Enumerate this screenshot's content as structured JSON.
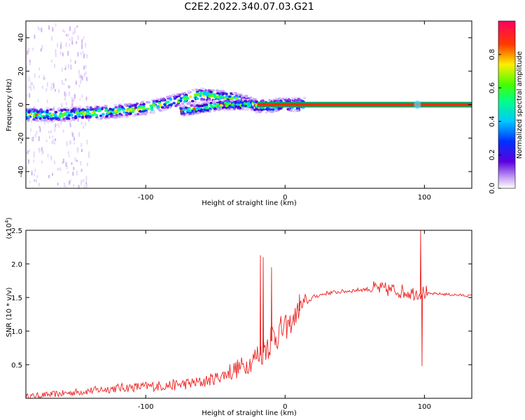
{
  "title": "C2E2.2022.340.07.03.G21",
  "chart_data": [
    {
      "type": "heatmap",
      "xlabel": "Height of straight line (km)",
      "ylabel": "Frequency (Hz)",
      "xlim": [
        -186,
        134
      ],
      "ylim": [
        -50,
        50
      ],
      "x_ticks": [
        -100,
        0,
        100
      ],
      "y_ticks": [
        -40,
        -20,
        0,
        20,
        40
      ],
      "colorbar": {
        "label": "Normalized spectral amplitude",
        "range": [
          0.0,
          1.0
        ],
        "ticks": [
          "0.0",
          "0.2",
          "0.4",
          "0.6",
          "0.8"
        ],
        "colormap": "rainbow (white → purple → blue → cyan → green → yellow → red → magenta)"
      },
      "main_trace": {
        "description_points_x": [
          -186,
          -160,
          -140,
          -120,
          -100,
          -80,
          -60,
          -40,
          -25,
          -20,
          0,
          10,
          50,
          95,
          134
        ],
        "description_points_y": [
          -6,
          -6,
          -5,
          -4,
          -2,
          2,
          6,
          4,
          1,
          -1,
          0,
          0,
          0,
          0,
          0
        ]
      },
      "secondary_trace": {
        "x": [
          -75,
          -60,
          -45,
          -30
        ],
        "y": [
          -4,
          -2,
          0,
          0
        ]
      },
      "grid": false
    },
    {
      "type": "line",
      "xlabel": "Height of straight line (km)",
      "ylabel": "SNR (10 * v/v)",
      "y_multiplier": "(x10",
      "y_multiplier_exp": "4",
      "xlim": [
        -186,
        134
      ],
      "ylim": [
        0,
        2.5
      ],
      "x_ticks": [
        -100,
        0,
        100
      ],
      "y_ticks": [
        0.5,
        1.0,
        1.5,
        2.0,
        2.5
      ],
      "y_tick_labels": [
        "0.5",
        "1.0",
        "1.5",
        "2.0",
        "2.5"
      ],
      "color": "#ee2222",
      "series": [
        {
          "base_x": [
            -186,
            -160,
            -140,
            -120,
            -100,
            -80,
            -60,
            -50,
            -40,
            -30,
            -25,
            -20,
            -15,
            -10,
            0,
            5,
            10,
            20,
            30,
            40,
            50,
            60,
            70,
            80,
            90,
            95,
            100,
            110,
            134
          ],
          "base_y": [
            0.02,
            0.06,
            0.1,
            0.14,
            0.16,
            0.18,
            0.22,
            0.28,
            0.36,
            0.45,
            0.5,
            0.6,
            0.7,
            0.85,
            1.0,
            1.1,
            1.3,
            1.5,
            1.56,
            1.58,
            1.6,
            1.62,
            1.6,
            1.58,
            1.55,
            1.55,
            1.55,
            1.55,
            1.52
          ],
          "spikes_x": [
            -18,
            -16,
            -10,
            10,
            97,
            98
          ],
          "spikes_y": [
            2.13,
            2.1,
            1.95,
            1.55,
            2.5,
            0.48
          ]
        }
      ],
      "grid": false
    }
  ]
}
